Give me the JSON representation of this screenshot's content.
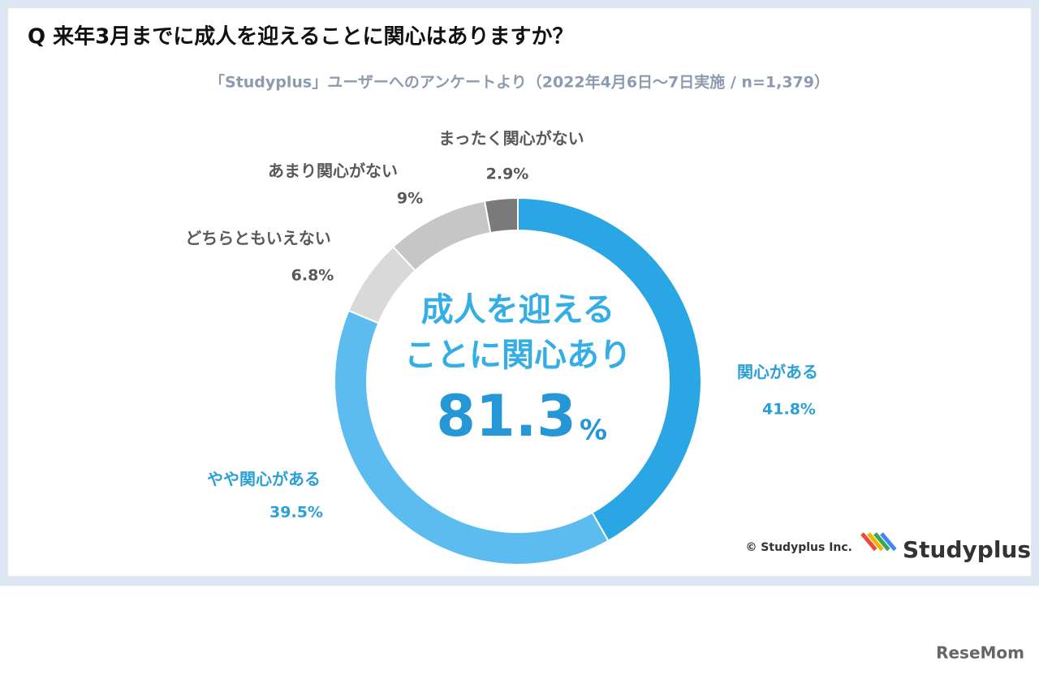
{
  "chart_data": {
    "type": "donut",
    "title": "Q 来年3月までに成人を迎えることに関心はありますか？",
    "subtitle": "「Studyplus」ユーザーへのアンケートより（2022年4月6日～7日実施 / n=1,379）",
    "categories": [
      "関心がある",
      "やや関心がある",
      "どちらともいえない",
      "あまり関心がない",
      "まったく関心がない"
    ],
    "values": [
      41.8,
      39.5,
      6.8,
      9,
      2.9
    ],
    "value_labels": [
      "41.8%",
      "39.5%",
      "6.8%",
      "9%",
      "2.9%"
    ],
    "colors": [
      "#2aa6e4",
      "#5cbcef",
      "#d9d9d9",
      "#c6c6c6",
      "#7a7a7a"
    ],
    "center_text": [
      "成人を迎える",
      "ことに関心あり"
    ],
    "center_number": "81.3",
    "center_unit": "%",
    "credit": "© Studyplus Inc.",
    "logo": "Studyplus",
    "watermark": "ReseMom"
  }
}
